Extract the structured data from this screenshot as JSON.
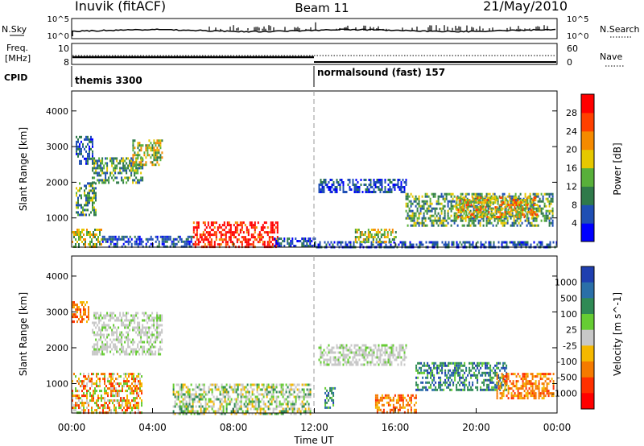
{
  "header": {
    "station": "Inuvik (fitACF)",
    "beam": "Beam 11",
    "date": "21/May/2010"
  },
  "top_panel": {
    "left_label": "N.Sky",
    "left_ticks": [
      "10^5",
      "10^0"
    ],
    "right_label": "N.Search",
    "right_ticks": [
      "10^5",
      "10^0"
    ]
  },
  "freq_panel": {
    "left_label_1": "Freq.",
    "left_label_2": "[MHz]",
    "left_ticks": [
      "10",
      "8"
    ],
    "right_label": "Nave",
    "right_ticks": [
      "60",
      "0"
    ]
  },
  "cpid_panel": {
    "label": "CPID",
    "modes": [
      "themis 3300",
      "normalsound (fast) 157"
    ]
  },
  "chart_data": [
    {
      "type": "heatmap",
      "title": "Power",
      "ylabel": "Slant Range [km]",
      "xlabel": "",
      "yticks": [
        "1000",
        "2000",
        "3000",
        "4000"
      ],
      "ylim": [
        180,
        4560
      ],
      "xlim_hours": [
        0,
        24
      ],
      "colorbar": {
        "label": "Power [dB]",
        "ticks": [
          "4",
          "8",
          "12",
          "16",
          "20",
          "24",
          "28"
        ],
        "colors": [
          "#0000ff",
          "#1f4fb4",
          "#2f7a4a",
          "#58b03a",
          "#e6c800",
          "#f58a00",
          "#ff4000",
          "#ff0000"
        ]
      },
      "regions": [
        {
          "t": [
            0.0,
            1.5
          ],
          "r": [
            180,
            700
          ],
          "level": "mid"
        },
        {
          "t": [
            0.2,
            1.2
          ],
          "r": [
            1100,
            2000
          ],
          "level": "low-mid"
        },
        {
          "t": [
            0.2,
            1.0
          ],
          "r": [
            2500,
            3300
          ],
          "level": "low"
        },
        {
          "t": [
            1.0,
            3.5
          ],
          "r": [
            2000,
            2700
          ],
          "level": "low-mid"
        },
        {
          "t": [
            3.0,
            4.5
          ],
          "r": [
            2500,
            3200
          ],
          "level": "mid"
        },
        {
          "t": [
            1.5,
            6.0
          ],
          "r": [
            180,
            500
          ],
          "level": "low"
        },
        {
          "t": [
            6.0,
            10.2
          ],
          "r": [
            180,
            900
          ],
          "level": "high"
        },
        {
          "t": [
            10.0,
            12.0
          ],
          "r": [
            180,
            450
          ],
          "level": "low"
        },
        {
          "t": [
            12.0,
            24.0
          ],
          "r": [
            180,
            350
          ],
          "level": "low"
        },
        {
          "t": [
            12.2,
            16.5
          ],
          "r": [
            1700,
            2100
          ],
          "level": "low"
        },
        {
          "t": [
            14.0,
            16.0
          ],
          "r": [
            300,
            700
          ],
          "level": "mid"
        },
        {
          "t": [
            16.5,
            23.8
          ],
          "r": [
            800,
            1700
          ],
          "level": "low-mid"
        },
        {
          "t": [
            19.0,
            23.0
          ],
          "r": [
            1000,
            1600
          ],
          "level": "mid-high"
        }
      ]
    },
    {
      "type": "heatmap",
      "title": "Velocity",
      "ylabel": "Slant Range [km]",
      "xlabel": "Time UT",
      "xticks": [
        "00:00",
        "04:00",
        "08:00",
        "12:00",
        "16:00",
        "20:00",
        "00:00"
      ],
      "xtick_hours": [
        0,
        4,
        8,
        12,
        16,
        20,
        24
      ],
      "yticks": [
        "1000",
        "2000",
        "3000",
        "4000"
      ],
      "ylim": [
        180,
        4560
      ],
      "xlim_hours": [
        0,
        24
      ],
      "colorbar": {
        "label": "Velocity [m s^-1]",
        "ticks": [
          "1000",
          "500",
          "100",
          "25",
          "-25",
          "-100",
          "-500",
          "-1000"
        ],
        "colors": [
          "#1f3fb0",
          "#2a6fa8",
          "#2f8a55",
          "#66cc33",
          "#c8c8c8",
          "#f5b800",
          "#f57a00",
          "#ff3000",
          "#ff0000"
        ]
      },
      "regions": [
        {
          "t": [
            0.0,
            0.8
          ],
          "r": [
            2700,
            3300
          ],
          "level": "negative"
        },
        {
          "t": [
            0.0,
            3.5
          ],
          "r": [
            180,
            1300
          ],
          "level": "mixed-negative"
        },
        {
          "t": [
            1.0,
            4.5
          ],
          "r": [
            1800,
            3000
          ],
          "level": "near-zero"
        },
        {
          "t": [
            5.0,
            11.8
          ],
          "r": [
            180,
            1000
          ],
          "level": "near-zero-mixed"
        },
        {
          "t": [
            12.2,
            16.5
          ],
          "r": [
            1500,
            2100
          ],
          "level": "near-zero"
        },
        {
          "t": [
            12.5,
            13.0
          ],
          "r": [
            300,
            900
          ],
          "level": "positive"
        },
        {
          "t": [
            15.0,
            17.0
          ],
          "r": [
            180,
            700
          ],
          "level": "negative"
        },
        {
          "t": [
            17.0,
            21.5
          ],
          "r": [
            800,
            1600
          ],
          "level": "positive"
        },
        {
          "t": [
            21.0,
            23.8
          ],
          "r": [
            600,
            1300
          ],
          "level": "negative"
        }
      ]
    }
  ]
}
